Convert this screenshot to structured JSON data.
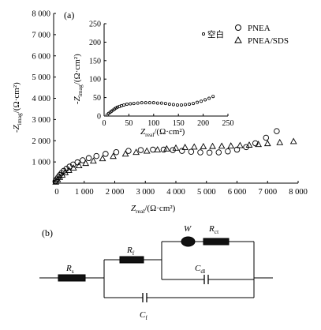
{
  "panels": {
    "a": "(a)",
    "b": "(b)"
  },
  "chart_data": [
    {
      "type": "scatter",
      "title": "",
      "xlabel": {
        "main": "Z",
        "sub": "real",
        "unit": "/(Ω·cm²)"
      },
      "ylabel": {
        "sign": "-",
        "main": "Z",
        "sub": "imag",
        "unit": "/(Ω·cm²)"
      },
      "xlim": [
        0,
        8000
      ],
      "ylim": [
        0,
        8000
      ],
      "x_ticks": [
        0,
        1000,
        2000,
        3000,
        4000,
        5000,
        6000,
        7000,
        8000
      ],
      "x_tick_labels": [
        "0",
        "1 000",
        "2 000",
        "3 000",
        "4 000",
        "5 000",
        "6 000",
        "7 000",
        "8 000"
      ],
      "y_ticks": [
        1000,
        2000,
        3000,
        4000,
        5000,
        6000,
        7000,
        8000
      ],
      "y_tick_labels": [
        "1 000",
        "2 000",
        "3 000",
        "4 000",
        "5 000",
        "6 000",
        "7 000",
        "8 000"
      ],
      "legend": {
        "placement": "top-right"
      },
      "series": [
        {
          "name": "PNEA",
          "marker": "circle",
          "points": [
            [
              60,
              80
            ],
            [
              100,
              180
            ],
            [
              150,
              280
            ],
            [
              200,
              380
            ],
            [
              260,
              480
            ],
            [
              330,
              580
            ],
            [
              420,
              680
            ],
            [
              520,
              780
            ],
            [
              640,
              880
            ],
            [
              780,
              980
            ],
            [
              950,
              1080
            ],
            [
              1150,
              1180
            ],
            [
              1400,
              1280
            ],
            [
              1700,
              1380
            ],
            [
              2050,
              1460
            ],
            [
              2450,
              1520
            ],
            [
              2850,
              1560
            ],
            [
              3250,
              1580
            ],
            [
              3600,
              1580
            ],
            [
              3900,
              1560
            ],
            [
              4200,
              1520
            ],
            [
              4500,
              1480
            ],
            [
              4800,
              1450
            ],
            [
              5100,
              1440
            ],
            [
              5400,
              1450
            ],
            [
              5700,
              1500
            ],
            [
              6000,
              1580
            ],
            [
              6300,
              1700
            ],
            [
              6600,
              1880
            ],
            [
              6950,
              2140
            ],
            [
              7300,
              2450
            ]
          ]
        },
        {
          "name": "PNEA/SDS",
          "marker": "triangle",
          "points": [
            [
              70,
              60
            ],
            [
              130,
              170
            ],
            [
              200,
              280
            ],
            [
              280,
              390
            ],
            [
              380,
              500
            ],
            [
              500,
              610
            ],
            [
              650,
              720
            ],
            [
              830,
              830
            ],
            [
              1050,
              940
            ],
            [
              1300,
              1050
            ],
            [
              1600,
              1160
            ],
            [
              1950,
              1270
            ],
            [
              2350,
              1380
            ],
            [
              2700,
              1460
            ],
            [
              3050,
              1520
            ],
            [
              3400,
              1580
            ],
            [
              3700,
              1620
            ],
            [
              4000,
              1660
            ],
            [
              4300,
              1690
            ],
            [
              4600,
              1710
            ],
            [
              4900,
              1730
            ],
            [
              5200,
              1740
            ],
            [
              5500,
              1750
            ],
            [
              5800,
              1760
            ],
            [
              6100,
              1780
            ],
            [
              6400,
              1800
            ],
            [
              6700,
              1830
            ],
            [
              7000,
              1870
            ],
            [
              7400,
              1920
            ],
            [
              7850,
              1970
            ]
          ]
        }
      ]
    },
    {
      "type": "scatter",
      "title": "",
      "xlabel": {
        "main": "Z",
        "sub": "real",
        "unit": "/(Ω·cm²)"
      },
      "ylabel": {
        "sign": "-",
        "main": "Z",
        "sub": "imag",
        "unit": "/(Ω·cm²)"
      },
      "xlim": [
        0,
        250
      ],
      "ylim": [
        0,
        250
      ],
      "x_ticks": [
        0,
        50,
        100,
        150,
        200,
        250
      ],
      "x_tick_labels": [
        "0",
        "50",
        "100",
        "150",
        "200",
        "250"
      ],
      "y_ticks": [
        0,
        50,
        100,
        150,
        200,
        250
      ],
      "y_tick_labels": [
        "0",
        "50",
        "100",
        "150",
        "200",
        "250"
      ],
      "legend": {
        "placement": "top-right"
      },
      "series": [
        {
          "name": "空白",
          "marker": "small-circle",
          "points": [
            [
              6,
              3
            ],
            [
              9,
              7
            ],
            [
              12,
              10
            ],
            [
              15,
              13
            ],
            [
              18,
              16
            ],
            [
              21,
              19
            ],
            [
              24,
              22
            ],
            [
              27,
              24
            ],
            [
              31,
              26
            ],
            [
              35,
              28
            ],
            [
              40,
              30
            ],
            [
              46,
              32
            ],
            [
              53,
              33
            ],
            [
              60,
              34
            ],
            [
              68,
              35
            ],
            [
              76,
              36
            ],
            [
              84,
              36
            ],
            [
              92,
              36
            ],
            [
              100,
              36
            ],
            [
              108,
              35
            ],
            [
              116,
              35
            ],
            [
              124,
              34
            ],
            [
              132,
              32
            ],
            [
              140,
              31
            ],
            [
              148,
              30
            ],
            [
              156,
              30
            ],
            [
              164,
              31
            ],
            [
              172,
              32
            ],
            [
              180,
              34
            ],
            [
              188,
              37
            ],
            [
              196,
              40
            ],
            [
              204,
              44
            ],
            [
              212,
              48
            ],
            [
              220,
              53
            ]
          ]
        }
      ]
    }
  ],
  "circuit": {
    "components": {
      "Rs": {
        "main": "R",
        "sub": "s"
      },
      "Rf": {
        "main": "R",
        "sub": "f"
      },
      "W": {
        "main": "W",
        "sub": ""
      },
      "Rct": {
        "main": "R",
        "sub": "ct"
      },
      "Cdl": {
        "main": "C",
        "sub": "dl"
      },
      "Cf": {
        "main": "C",
        "sub": "f"
      }
    }
  }
}
